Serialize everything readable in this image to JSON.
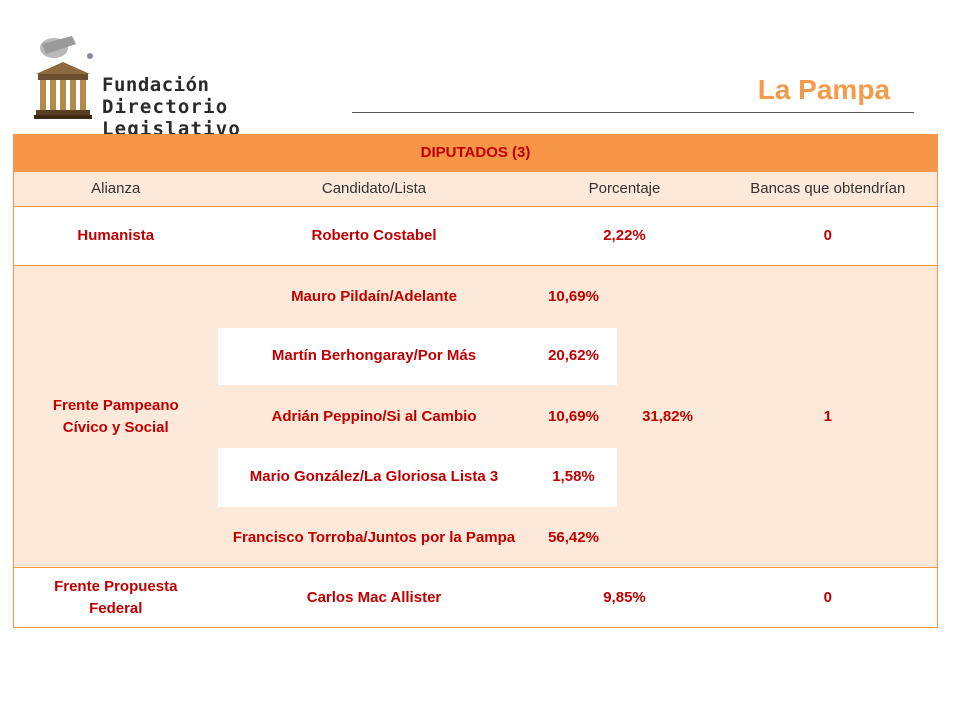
{
  "header": {
    "logo_line1": "Fundación",
    "logo_line2": "Directorio Legislativo",
    "region": "La Pampa"
  },
  "table": {
    "section_title": "DIPUTADOS (3)",
    "columns": [
      "Alianza",
      "Candidato/Lista",
      "Porcentaje",
      "Bancas que obtendrían"
    ],
    "rows": [
      {
        "alianza": "Humanista",
        "candidato": "Roberto Costabel",
        "porcentaje": "2,22%",
        "bancas": "0"
      },
      {
        "alianza": "Frente Pampeano Cívico y Social",
        "sublists": [
          {
            "candidato": "Mauro Pildaín/Adelante",
            "porcentaje": "10,69%"
          },
          {
            "candidato": "Martín Berhongaray/Por Más",
            "porcentaje": "20,62%"
          },
          {
            "candidato": "Adrián Peppino/Si al Cambio",
            "porcentaje": "10,69%"
          },
          {
            "candidato": "Mario González/La Gloriosa Lista 3",
            "porcentaje": "1,58%"
          },
          {
            "candidato": "Francisco Torroba/Juntos por la Pampa",
            "porcentaje": "56,42%"
          }
        ],
        "porcentaje_total": "31,82%",
        "bancas": "1"
      },
      {
        "alianza": "Frente Propuesta Federal",
        "candidato": "Carlos Mac Allister",
        "porcentaje": "9,85%",
        "bancas": "0"
      }
    ]
  },
  "colors": {
    "accent": "#f79646",
    "row_tint": "#fde9d9",
    "text_red": "#c00000",
    "region_title": "#f39b4b"
  }
}
